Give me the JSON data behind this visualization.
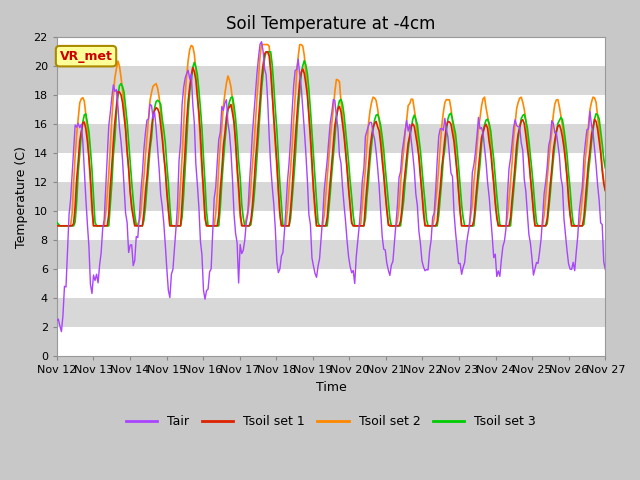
{
  "title": "Soil Temperature at -4cm",
  "xlabel": "Time",
  "ylabel": "Temperature (C)",
  "xtick_labels": [
    "Nov 12",
    "Nov 13",
    "Nov 14",
    "Nov 15",
    "Nov 16",
    "Nov 17",
    "Nov 18",
    "Nov 19",
    "Nov 20",
    "Nov 21",
    "Nov 22",
    "Nov 23",
    "Nov 24",
    "Nov 25",
    "Nov 26",
    "Nov 27"
  ],
  "colors": {
    "Tair": "#aa44ff",
    "Tsoil1": "#dd2200",
    "Tsoil2": "#ff8800",
    "Tsoil3": "#00cc00"
  },
  "annotation": "VR_met",
  "annotation_color": "#cc0000",
  "annotation_bg": "#ffff99",
  "plot_bg": "#e8e8e8",
  "title_fontsize": 12,
  "axis_fontsize": 9,
  "tick_fontsize": 8,
  "legend_fontsize": 9,
  "figsize": [
    6.4,
    4.8
  ],
  "dpi": 100
}
